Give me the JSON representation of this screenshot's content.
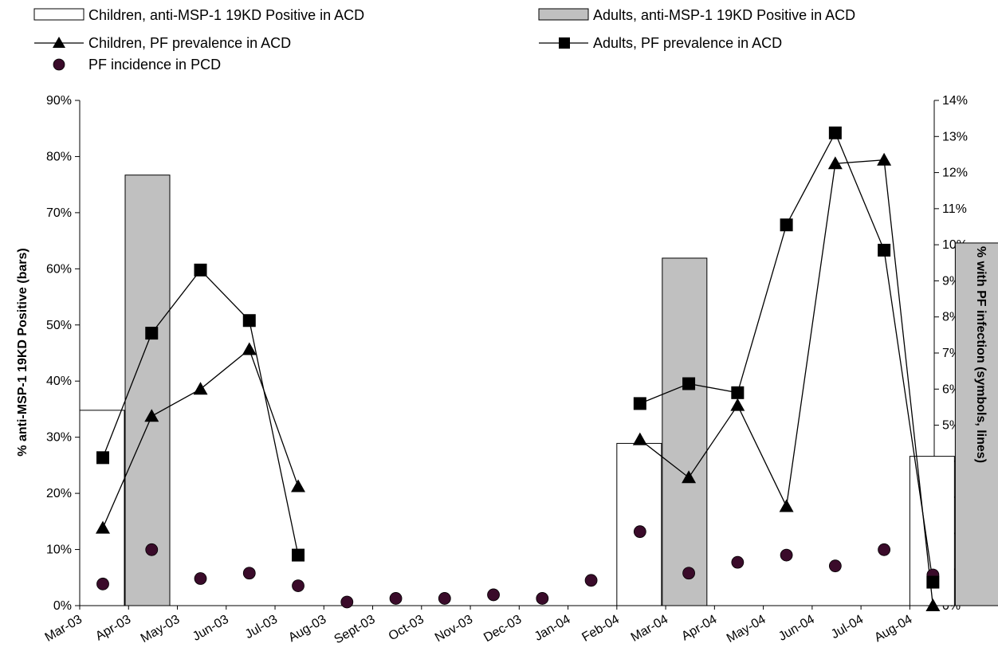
{
  "chart_data": {
    "type": "bar",
    "title": "",
    "xlabel": "",
    "ylabel": "% anti-MSP-1 19KD Positive (bars)",
    "y2label": "% with PF infection (symbols, lines)",
    "ylim": [
      0,
      90
    ],
    "y2lim": [
      0,
      14
    ],
    "yticks": [
      "0%",
      "10%",
      "20%",
      "30%",
      "40%",
      "50%",
      "60%",
      "70%",
      "80%",
      "90%"
    ],
    "y2ticks": [
      "0%",
      "1%",
      "2%",
      "3%",
      "4%",
      "5%",
      "6%",
      "7%",
      "8%",
      "9%",
      "10%",
      "11%",
      "12%",
      "13%",
      "14%"
    ],
    "categories": [
      "Mar-03",
      "Apr-03",
      "May-03",
      "Jun-03",
      "Jul-03",
      "Aug-03",
      "Sept-03",
      "Oct-03",
      "Nov-03",
      "Dec-03",
      "Jan-04",
      "Feb-04",
      "Mar-04",
      "Apr-04",
      "May-04",
      "Jun-04",
      "Jul-04",
      "Aug-04"
    ],
    "legend": {
      "children_bar": "Children, anti-MSP-1 19KD Positive in ACD",
      "adults_bar": "Adults, anti-MSP-1 19KD Positive in ACD",
      "children_line": "Children, PF prevalence in ACD",
      "adults_line": "Adults, PF prevalence in ACD",
      "incidence": "PF incidence in PCD"
    },
    "bars": {
      "children_anti_msp1": [
        {
          "x": "Mar-03",
          "value": 34.8
        },
        {
          "x": "Feb-04",
          "value": 28.9
        },
        {
          "x": "Aug-04",
          "value": 26.6
        }
      ],
      "adults_anti_msp1": [
        {
          "x": "Mar-03",
          "value": 76.7
        },
        {
          "x": "Feb-04",
          "value": 61.9
        },
        {
          "x": "Aug-04",
          "value": 64.6
        }
      ]
    },
    "series": [
      {
        "name": "Children, PF prevalence in ACD",
        "axis": "right",
        "x": [
          "Mar-03",
          "Apr-03",
          "May-03",
          "Jun-03",
          "Jul-03",
          "Feb-04",
          "Mar-04",
          "Apr-04",
          "May-04",
          "Jun-04",
          "Jul-04",
          "Aug-04"
        ],
        "values": [
          2.15,
          5.25,
          6.0,
          7.1,
          3.3,
          4.6,
          3.55,
          5.55,
          2.75,
          12.25,
          12.35,
          0.0
        ]
      },
      {
        "name": "Adults, PF prevalence in ACD",
        "axis": "right",
        "x": [
          "Mar-03",
          "Apr-03",
          "May-03",
          "Jun-03",
          "Jul-03",
          "Feb-04",
          "Mar-04",
          "Apr-04",
          "May-04",
          "Jun-04",
          "Jul-04",
          "Aug-04"
        ],
        "values": [
          4.1,
          7.55,
          9.3,
          7.9,
          1.4,
          5.6,
          6.15,
          5.9,
          10.55,
          13.1,
          9.85,
          0.65
        ]
      },
      {
        "name": "PF incidence in PCD",
        "axis": "right",
        "x": [
          "Mar-03",
          "Apr-03",
          "May-03",
          "Jun-03",
          "Jul-03",
          "Aug-03",
          "Sept-03",
          "Oct-03",
          "Nov-03",
          "Dec-03",
          "Jan-04",
          "Feb-04",
          "Mar-04",
          "Apr-04",
          "May-04",
          "Jun-04",
          "Jul-04",
          "Aug-04"
        ],
        "values": [
          0.6,
          1.55,
          0.75,
          0.9,
          0.55,
          0.1,
          0.2,
          0.2,
          0.3,
          0.2,
          0.7,
          2.05,
          0.9,
          1.2,
          1.4,
          1.1,
          1.55,
          0.85
        ]
      }
    ],
    "grid": false,
    "legend_position": "top"
  }
}
